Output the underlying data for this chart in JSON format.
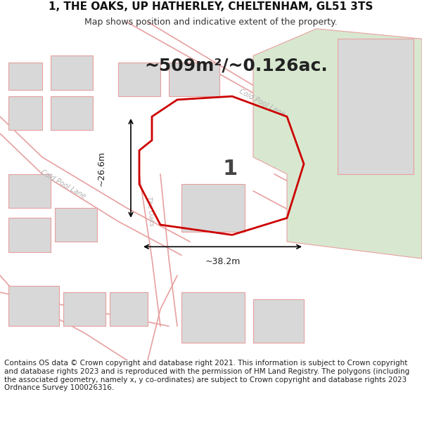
{
  "title": "1, THE OAKS, UP HATHERLEY, CHELTENHAM, GL51 3TS",
  "subtitle": "Map shows position and indicative extent of the property.",
  "area_text": "~509m²/~0.126ac.",
  "label_number": "1",
  "dim_horizontal": "~38.2m",
  "dim_vertical": "~26.6m",
  "road_label_1": "Cold Pool Lane",
  "road_label_2": "Cold Pool Lane",
  "road_label_3": "The Oaks",
  "footer": "Contains OS data © Crown copyright and database right 2021. This information is subject to Crown copyright and database rights 2023 and is reproduced with the permission of HM Land Registry. The polygons (including the associated geometry, namely x, y co-ordinates) are subject to Crown copyright and database rights 2023 Ordnance Survey 100026316.",
  "bg_color": "#ffffff",
  "map_bg": "#f5f5f5",
  "road_color": "#ffffff",
  "road_border_color": "#e8a0a0",
  "building_color": "#d8d8d8",
  "building_border": "#e8a0a0",
  "green_area_color": "#d8e8d0",
  "plot_outline_color": "#cc0000",
  "plot_fill_color": "#ffffff",
  "dim_line_color": "#000000",
  "title_fontsize": 11,
  "subtitle_fontsize": 9,
  "footer_fontsize": 7.5
}
